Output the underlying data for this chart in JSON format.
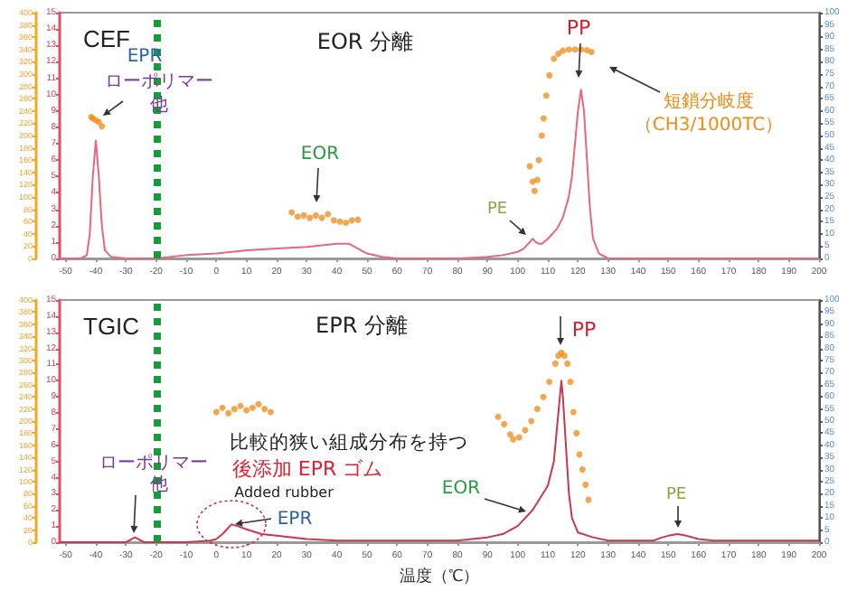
{
  "chart_data": [
    {
      "type": "line",
      "title": "CEF",
      "xlim": [
        -52,
        200
      ],
      "xticks": [
        -50,
        -40,
        -30,
        -20,
        -10,
        0,
        10,
        20,
        30,
        40,
        50,
        60,
        70,
        80,
        90,
        100,
        110,
        120,
        130,
        140,
        150,
        160,
        170,
        180,
        190,
        200
      ],
      "ylim": [
        0,
        15
      ],
      "yticks": [
        0,
        1,
        2,
        3,
        4,
        5,
        6,
        7,
        8,
        9,
        10,
        11,
        12,
        13,
        14,
        15
      ],
      "y2lim": [
        0,
        400
      ],
      "y2ticks": [
        0,
        20,
        40,
        60,
        80,
        100,
        120,
        140,
        160,
        180,
        200,
        220,
        240,
        260,
        280,
        300,
        320,
        340,
        360,
        380,
        400
      ],
      "y3lim": [
        0,
        100
      ],
      "y3ticks": [
        0,
        5,
        10,
        15,
        20,
        25,
        30,
        35,
        40,
        45,
        50,
        55,
        60,
        65,
        70,
        75,
        80,
        85,
        90,
        95,
        100
      ],
      "series": [
        {
          "color": "#e8677a",
          "marker": "none",
          "x": [
            -52,
            -45,
            -43,
            -42,
            -41,
            -40,
            -39,
            -38,
            -37,
            -35,
            -30,
            -20,
            -10,
            0,
            10,
            20,
            30,
            35,
            40,
            44,
            47,
            50,
            55,
            60,
            80,
            90,
            95,
            100,
            102,
            104,
            105,
            106,
            107,
            108,
            110,
            113,
            115,
            117,
            118,
            119,
            120,
            121,
            122,
            123,
            124,
            125,
            127,
            130,
            140,
            200
          ],
          "values": [
            0,
            0,
            0.2,
            1.5,
            5,
            7.2,
            5,
            2,
            0.5,
            0.1,
            0,
            0,
            0.2,
            0.3,
            0.5,
            0.6,
            0.7,
            0.8,
            0.9,
            0.9,
            0.6,
            0.3,
            0.1,
            0,
            0,
            0.1,
            0.2,
            0.4,
            0.6,
            1.0,
            1.2,
            1.0,
            0.9,
            0.9,
            1.2,
            1.8,
            2.5,
            3.8,
            5,
            7,
            9,
            10.3,
            9,
            6,
            3,
            1.2,
            0.3,
            0,
            0,
            0
          ]
        },
        {
          "type": "scatter",
          "axis": "y2",
          "color": "#f0901e",
          "marker": "circle",
          "x": [
            -41.5,
            -41,
            -40,
            -39,
            -38,
            25,
            27,
            29,
            31,
            33,
            35,
            37,
            39,
            41,
            43,
            45,
            47,
            104,
            105,
            105.6,
            106.5,
            107,
            108,
            108.6,
            109.5,
            110.5,
            112,
            113.5,
            115,
            117,
            119,
            121,
            123,
            124.5
          ],
          "values": [
            230,
            228,
            225,
            222,
            215,
            75,
            68,
            70,
            66,
            70,
            66,
            72,
            62,
            60,
            58,
            62,
            63,
            150,
            125,
            110,
            128,
            160,
            200,
            228,
            265,
            298,
            325,
            333,
            338,
            340,
            340,
            340,
            339,
            336
          ]
        }
      ],
      "ref_lines": [
        {
          "axis": "x",
          "value": -20,
          "color": "#1a9a3a",
          "line_style": "dotted"
        }
      ],
      "annotations": [
        "EOR 分離",
        "EPR",
        "ローポリマー",
        "他",
        "EOR",
        "PE",
        "PP",
        "短鎖分岐度",
        "（CH3/1000TC）"
      ]
    },
    {
      "type": "line",
      "title": "TGIC",
      "xlabel": "温度（℃）",
      "xlim": [
        -52,
        200
      ],
      "xticks": [
        -50,
        -40,
        -30,
        -20,
        -10,
        0,
        10,
        20,
        30,
        40,
        50,
        60,
        70,
        80,
        90,
        100,
        110,
        120,
        130,
        140,
        150,
        160,
        170,
        180,
        190,
        200
      ],
      "ylim": [
        0,
        15
      ],
      "yticks": [
        0,
        1,
        2,
        3,
        4,
        5,
        6,
        7,
        8,
        9,
        10,
        11,
        12,
        13,
        14,
        15
      ],
      "y2lim": [
        0,
        400
      ],
      "y2ticks": [
        0,
        20,
        40,
        60,
        80,
        100,
        120,
        140,
        160,
        180,
        200,
        220,
        240,
        260,
        280,
        300,
        320,
        340,
        360,
        380,
        400
      ],
      "y3lim": [
        0,
        100
      ],
      "y3ticks": [
        0,
        5,
        10,
        15,
        20,
        25,
        30,
        35,
        40,
        45,
        50,
        55,
        60,
        65,
        70,
        75,
        80,
        85,
        90,
        95,
        100
      ],
      "series": [
        {
          "color": "#c8384e",
          "marker": "none",
          "x": [
            -52,
            -30,
            -28,
            -27,
            -26,
            -24,
            -20,
            -10,
            -2,
            0,
            2,
            3,
            5,
            7,
            10,
            15,
            20,
            30,
            40,
            60,
            80,
            90,
            95,
            100,
            105,
            110,
            112,
            113,
            114,
            114.5,
            115,
            116,
            117,
            118,
            120,
            125,
            130,
            140,
            145,
            148,
            150,
            153,
            156,
            160,
            165,
            200
          ],
          "values": [
            0,
            0,
            0.2,
            0.3,
            0.2,
            0,
            0,
            0,
            0.1,
            0.2,
            0.5,
            0.7,
            1.1,
            1.0,
            0.8,
            0.5,
            0.4,
            0.2,
            0.1,
            0.1,
            0.1,
            0.3,
            0.5,
            1.0,
            2.0,
            3.5,
            5,
            7,
            9,
            10,
            9,
            6,
            3,
            1.5,
            0.6,
            0.3,
            0.1,
            0.1,
            0.1,
            0.3,
            0.4,
            0.5,
            0.4,
            0.2,
            0.1,
            0.1
          ]
        },
        {
          "type": "scatter",
          "axis": "y2",
          "color": "#f0901e",
          "marker": "circle",
          "x": [
            0,
            2,
            4,
            6,
            8,
            10,
            12,
            14,
            16,
            18,
            93.5,
            95.5,
            97.5,
            98.5,
            100.5,
            102.5,
            104.5,
            106.5,
            108.5,
            110.5,
            112.5,
            113.5,
            114.5,
            115.5,
            116.5,
            117.5,
            118.5,
            119.5,
            120.5,
            121.5,
            122.5,
            123.5
          ],
          "values": [
            215,
            222,
            213,
            220,
            225,
            218,
            222,
            228,
            220,
            215,
            207,
            195,
            178,
            170,
            173,
            185,
            200,
            220,
            240,
            265,
            295,
            308,
            313,
            308,
            295,
            265,
            215,
            180,
            145,
            120,
            95,
            70
          ]
        }
      ],
      "ref_lines": [
        {
          "axis": "x",
          "value": -20,
          "color": "#1a9a3a",
          "line_style": "dotted"
        }
      ],
      "annotations": [
        "EPR 分離",
        "ローポリマー",
        "他",
        "比較的狭い組成分布を持つ",
        "後添加 EPR ゴム",
        "Added rubber",
        "EPR",
        "EOR",
        "PP",
        "PE"
      ]
    }
  ]
}
